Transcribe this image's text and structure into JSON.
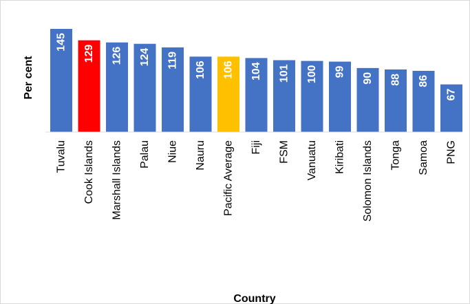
{
  "chart_data": {
    "type": "bar",
    "title": "",
    "xlabel": "Country",
    "ylabel": "Per cent",
    "ylim": [
      0,
      155
    ],
    "grid": false,
    "legend": "none",
    "categories": [
      "Tuvalu",
      "Cook Islands",
      "Marshall Islands",
      "Palau",
      "Niue",
      "Nauru",
      "Pacific Average",
      "Fiji",
      "FSM",
      "Vanuatu",
      "Kiribati",
      "Solomon Islands",
      "Tonga",
      "Samoa",
      "PNG"
    ],
    "values": [
      145,
      129,
      126,
      124,
      119,
      106,
      106,
      104,
      101,
      100,
      99,
      90,
      88,
      86,
      67
    ],
    "bar_colors": [
      "#4472c4",
      "#ff0000",
      "#4472c4",
      "#4472c4",
      "#4472c4",
      "#4472c4",
      "#ffc000",
      "#4472c4",
      "#4472c4",
      "#4472c4",
      "#4472c4",
      "#4472c4",
      "#4472c4",
      "#4472c4",
      "#4472c4"
    ],
    "data_labels": [
      "145",
      "129",
      "126",
      "124",
      "119",
      "106",
      "106",
      "104",
      "101",
      "100",
      "99",
      "90",
      "88",
      "86",
      "67"
    ]
  },
  "colors": {
    "default_bar": "#4472c4",
    "highlight_bar": "#ff0000",
    "average_bar": "#ffc000",
    "axis_line": "#d9d9d9"
  }
}
